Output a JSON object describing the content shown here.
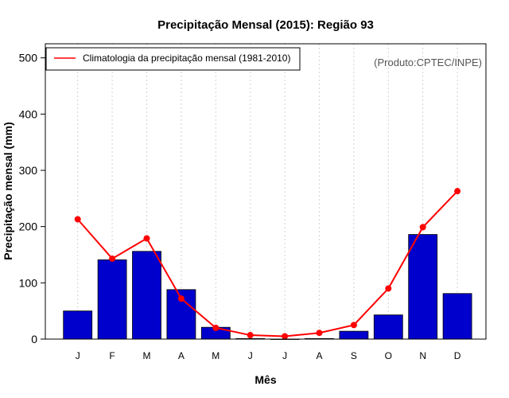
{
  "chart_data": {
    "type": "bar",
    "title": "Precipitação Mensal (2015): Região 93",
    "xlabel": "Mês",
    "ylabel": "Precipitação mensal (mm)",
    "ylim": [
      0,
      525
    ],
    "yticks": [
      0,
      100,
      200,
      300,
      400,
      500
    ],
    "categories": [
      "J",
      "F",
      "M",
      "A",
      "M",
      "J",
      "J",
      "A",
      "S",
      "O",
      "N",
      "D"
    ],
    "series": [
      {
        "name": "Precipitação mensal 2015",
        "type": "bar",
        "color": "#0000CC",
        "values": [
          50,
          141,
          156,
          88,
          21,
          1,
          0,
          1,
          14,
          43,
          186,
          81
        ]
      },
      {
        "name": "Climatologia da precipitação mensal (1981-2010)",
        "type": "line",
        "color": "#FF0000",
        "values": [
          213,
          143,
          179,
          72,
          20,
          7,
          5,
          11,
          25,
          90,
          199,
          263
        ]
      }
    ],
    "legend": {
      "label": "Climatologia da precipitação mensal (1981-2010)",
      "position": "top-left"
    },
    "credit": "(Produto:CPTEC/INPE)",
    "grid": "vertical-dotted"
  }
}
